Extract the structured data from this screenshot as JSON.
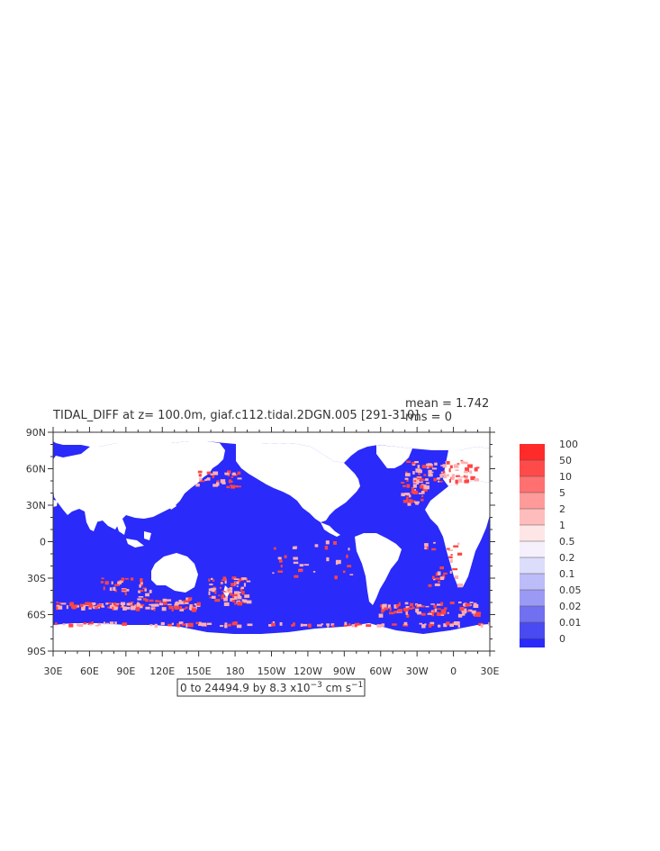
{
  "plot": {
    "title": "TIDAL_DIFF at z= 100.0m, giaf.c112.tidal.2DGN.005 [291-310]",
    "stats": {
      "mean": "mean = 1.742",
      "rms": "rms = 0"
    },
    "range_label_main": "0 to 24494.9 by 8.3 x10",
    "range_label_exp": "−3",
    "range_label_unit": " cm s",
    "range_label_unit_exp": "−1",
    "y_ticks": [
      "90N",
      "60N",
      "30N",
      "0",
      "30S",
      "60S",
      "90S"
    ],
    "x_ticks": [
      "30E",
      "60E",
      "90E",
      "120E",
      "150E",
      "180",
      "150W",
      "120W",
      "90W",
      "60W",
      "30W",
      "0",
      "30E"
    ]
  },
  "colorbar": {
    "labels": [
      "100",
      "50",
      "10",
      "5",
      "2",
      "1",
      "0.5",
      "0.2",
      "0.1",
      "0.05",
      "0.02",
      "0.01",
      "0"
    ],
    "colors": [
      "#ff2a2a",
      "#ff4a4a",
      "#ff7070",
      "#ff9a9a",
      "#ffbcbc",
      "#ffe6e6",
      "#f5f0fb",
      "#dcdcfb",
      "#bcbcf8",
      "#9a9af4",
      "#7070f0",
      "#4a4af2",
      "#2a2afa"
    ]
  },
  "colors": {
    "ocean": "#2a2afa",
    "land": "#ffffff",
    "hot": "#ff4444",
    "warm": "#ffb0b0"
  }
}
